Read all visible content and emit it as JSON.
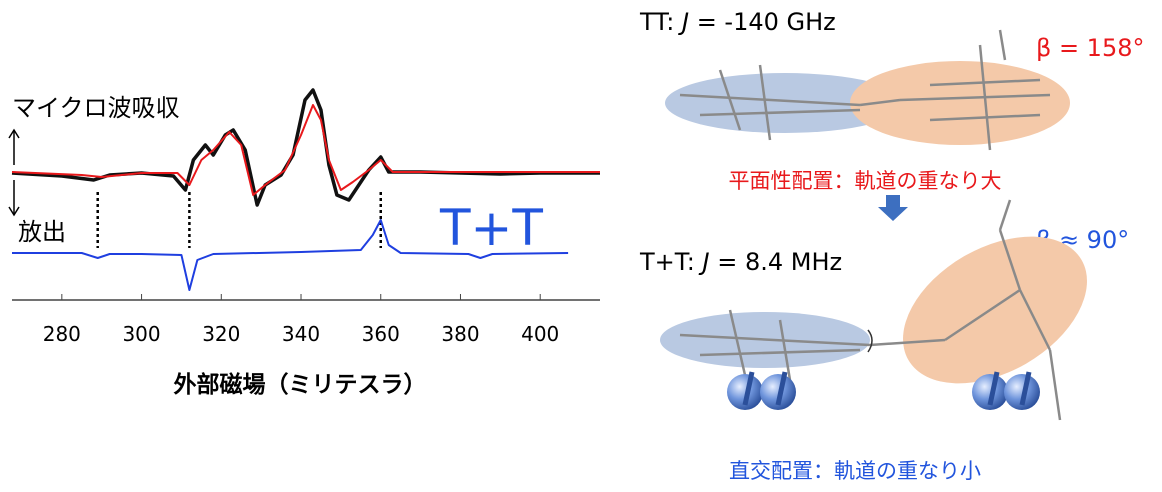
{
  "chart_data": {
    "type": "line",
    "xlim": [
      267.5,
      415
    ],
    "xticks": [
      280,
      300,
      320,
      340,
      360,
      380,
      400
    ],
    "ylim": [
      0,
      220
    ],
    "xlabel": "外部磁場（ミリテスラ）",
    "annotations": {
      "absorption": "マイクロ波吸収",
      "emission": "放出",
      "series_label": "T+T"
    },
    "vlines": [
      289,
      312,
      360
    ],
    "series": [
      {
        "color": "#111111",
        "x": [
          267.5,
          280,
          288,
          292,
          300,
          308,
          311,
          313,
          316,
          318,
          321,
          323,
          326,
          329,
          331,
          335,
          338,
          341,
          343,
          345,
          347,
          349,
          352,
          355,
          357,
          360,
          362,
          370,
          380,
          390,
          400,
          415
        ],
        "values": [
          127,
          124,
          120,
          125,
          127,
          124,
          110,
          140,
          155,
          145,
          165,
          170,
          150,
          95,
          115,
          125,
          145,
          200,
          210,
          190,
          135,
          105,
          100,
          118,
          130,
          143,
          128,
          128,
          127,
          126,
          127,
          127
        ]
      },
      {
        "color": "#e8191c",
        "x": [
          267.5,
          285,
          290,
          300,
          309,
          312,
          315,
          318,
          322,
          325,
          328,
          331,
          336,
          340,
          343,
          345,
          347,
          350,
          353,
          357,
          360,
          363,
          380,
          415
        ],
        "values": [
          128,
          125,
          123,
          127,
          127,
          115,
          140,
          150,
          168,
          155,
          105,
          115,
          130,
          165,
          195,
          180,
          140,
          110,
          118,
          130,
          140,
          128,
          128,
          128
        ]
      },
      {
        "color": "#1f3fe0",
        "x": [
          267.5,
          285,
          289,
          292,
          300,
          310,
          312,
          314,
          318,
          340,
          355,
          358,
          360,
          362,
          365,
          382,
          385,
          388,
          407
        ],
        "values": [
          47,
          47,
          42,
          46,
          46,
          45,
          10,
          40,
          46,
          48,
          50,
          65,
          80,
          55,
          47,
          46,
          42,
          46,
          47
        ]
      }
    ]
  },
  "diagram": {
    "top": {
      "prefix": "TT: ",
      "symbol": "J",
      "value": " = -140 GHz",
      "beta": "β = 158°",
      "caption": "平面性配置：軌道の重なり大"
    },
    "bottom": {
      "prefix": "T+T: ",
      "symbol": "J",
      "value": " = 8.4 MHz",
      "beta": "β ≈ 90°",
      "caption": "直交配置：軌道の重なり小"
    }
  }
}
